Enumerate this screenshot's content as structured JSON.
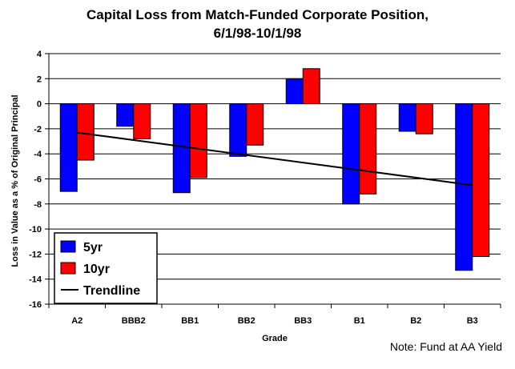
{
  "chart_data": {
    "type": "bar",
    "title_line1": "Capital Loss from Match-Funded Corporate Position,",
    "title_line2": "6/1/98-10/1/98",
    "xlabel": "Grade",
    "ylabel": "Loss in Value as a % of Original Principal",
    "ylim": [
      -16,
      4
    ],
    "yticks": [
      4,
      2,
      0,
      -2,
      -4,
      -6,
      -8,
      -10,
      -12,
      -14,
      -16
    ],
    "categories": [
      "A2",
      "BBB2",
      "BB1",
      "BB2",
      "BB3",
      "B1",
      "B2",
      "B3"
    ],
    "series": [
      {
        "name": "5yr",
        "color": "#0000ff",
        "values": [
          -7.0,
          -1.8,
          -7.1,
          -4.2,
          2.0,
          -8.0,
          -2.2,
          -13.3
        ]
      },
      {
        "name": "10yr",
        "color": "#ff0000",
        "values": [
          -4.5,
          -2.8,
          -5.9,
          -3.3,
          2.8,
          -7.2,
          -2.4,
          -12.2
        ]
      }
    ],
    "trendline": {
      "name": "Trendline",
      "color": "#000000",
      "start": -2.3,
      "end": -6.5
    },
    "legend_position": "bottom-left",
    "gridlines": true,
    "note": "Note: Fund at AA Yield"
  }
}
